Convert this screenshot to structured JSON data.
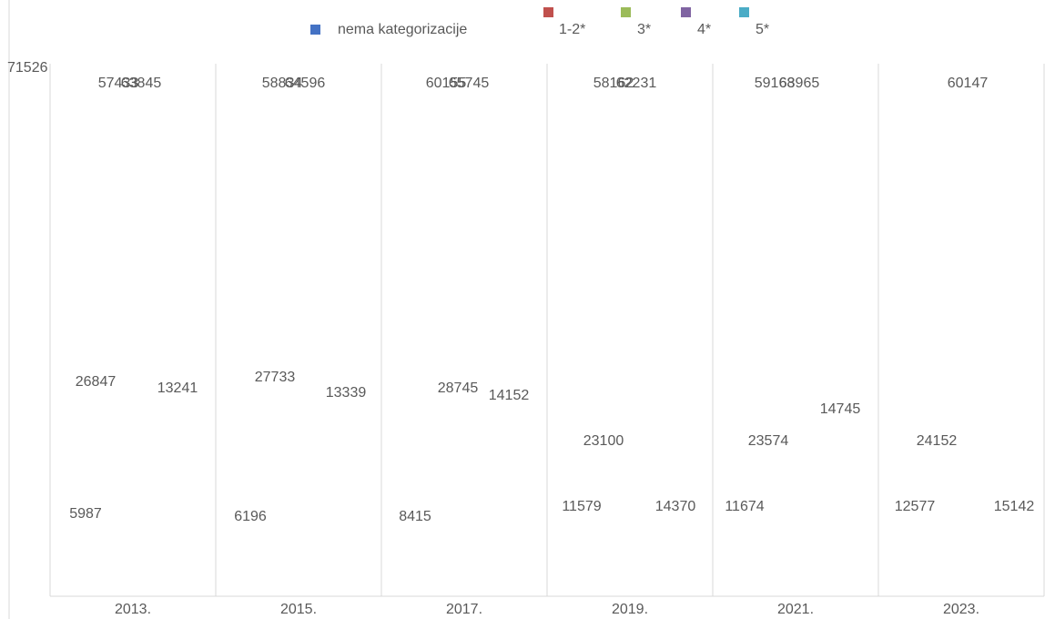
{
  "chart_data": {
    "type": "bar",
    "categories": [
      "2013.",
      "2015.",
      "2017.",
      "2019.",
      "2021.",
      "2023."
    ],
    "series": [
      {
        "name": "nema kategorizacije",
        "color": "#4472c4",
        "values": [
          57433,
          58834,
          60155,
          58162,
          59168,
          60147
        ]
      },
      {
        "name": "1-2*",
        "color": "#c0504d",
        "values": [
          63845,
          64596,
          65745,
          62231,
          63965,
          null
        ]
      },
      {
        "name": "3*",
        "color": "#9bbb59",
        "values": [
          26847,
          27733,
          28745,
          23100,
          23574,
          24152
        ]
      },
      {
        "name": "4*",
        "color": "#8064a2",
        "values": [
          13241,
          13339,
          14152,
          14370,
          14745,
          15142
        ]
      },
      {
        "name": "5*",
        "color": "#4bacc6",
        "values": [
          5987,
          6196,
          8415,
          11579,
          11674,
          12577
        ]
      }
    ],
    "ylim": [
      0,
      71526
    ],
    "yticks": [
      71526
    ]
  }
}
